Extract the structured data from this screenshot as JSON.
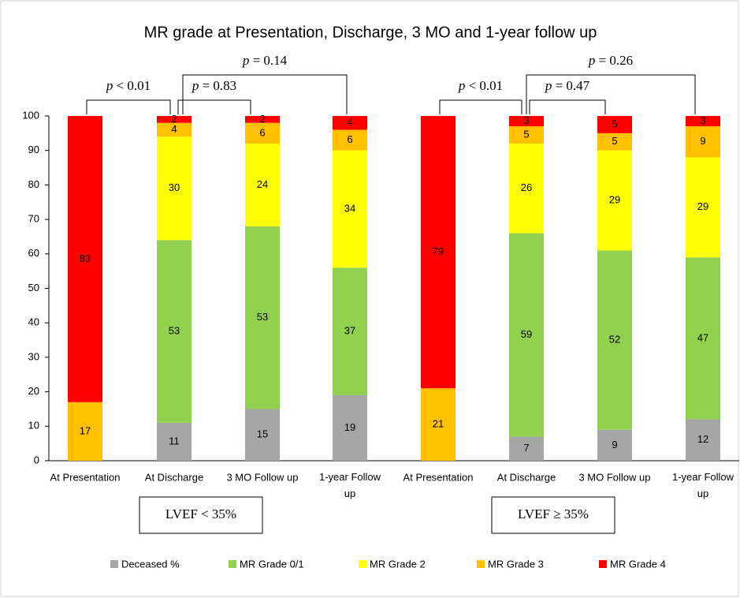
{
  "chart_data": {
    "type": "stacked-bar",
    "title": "MR grade at Presentation, Discharge, 3 MO and 1-year follow up",
    "categories": [
      "At Presentation",
      "At Discharge",
      "3 MO Follow up",
      "1-year Follow up",
      "At Presentation",
      "At Discharge",
      "3 MO Follow up",
      "1-year Follow up"
    ],
    "groups": [
      "LVEF < 35%",
      "LVEF ≥ 35%"
    ],
    "series": [
      {
        "name": "Deceased %",
        "color": "#a6a6a6",
        "values": [
          null,
          11,
          15,
          19,
          null,
          7,
          9,
          12
        ]
      },
      {
        "name": "MR Grade 0/1",
        "color": "#92d050",
        "values": [
          null,
          53,
          53,
          37,
          null,
          59,
          52,
          47
        ]
      },
      {
        "name": "MR Grade  2",
        "color": "#ffff00",
        "values": [
          null,
          30,
          24,
          34,
          null,
          26,
          29,
          29
        ]
      },
      {
        "name": "MR Grade  3",
        "color": "#ffc000",
        "values": [
          17,
          4,
          6,
          6,
          21,
          5,
          5,
          9
        ]
      },
      {
        "name": "MR Grade  4",
        "color": "#ff0000",
        "values": [
          83,
          2,
          2,
          4,
          79,
          3,
          5,
          3
        ]
      }
    ],
    "annotations": [
      "p < 0.01",
      "p = 0.83",
      "p = 0.14",
      "p < 0.01",
      "p = 0.47",
      "p = 0.26"
    ],
    "ylim": [
      0,
      100
    ],
    "yticks": [
      0,
      10,
      20,
      30,
      40,
      50,
      60,
      70,
      80,
      90,
      100
    ],
    "grid": false,
    "legend": "bottom"
  }
}
